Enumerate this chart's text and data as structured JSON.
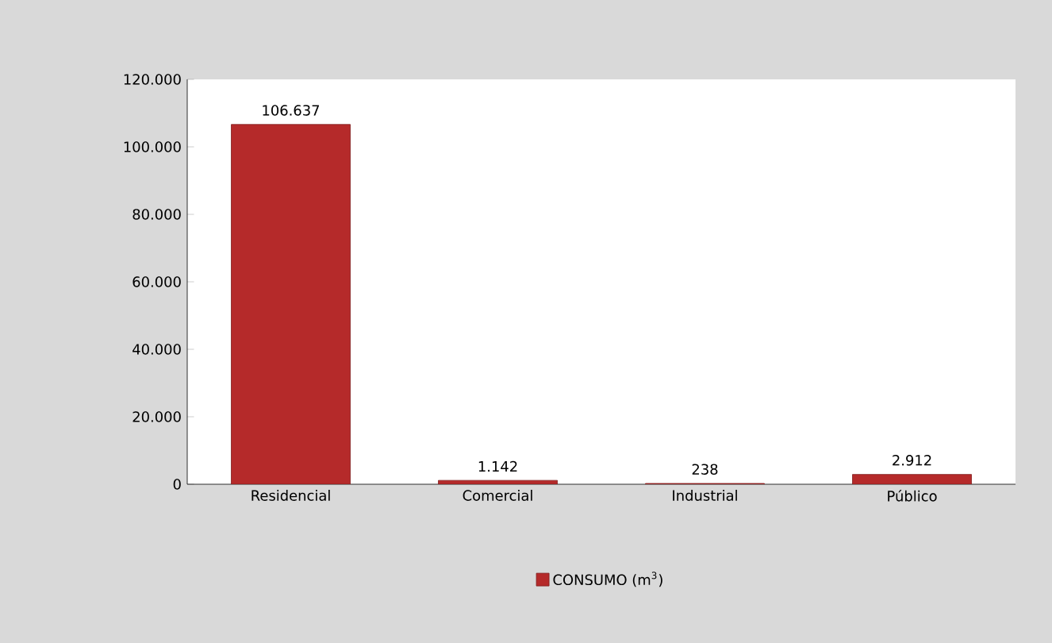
{
  "chart_data": {
    "type": "bar",
    "categories": [
      "Residencial",
      "Comercial",
      "Industrial",
      "Público"
    ],
    "series": [
      {
        "name": "CONSUMO (m$^{3}$)",
        "color": "#b52a2a",
        "values": [
          106637,
          1142,
          238,
          2912
        ],
        "value_labels": [
          "106.637",
          "1.142",
          "238",
          "2.912"
        ]
      }
    ],
    "ylim": [
      0,
      120000
    ],
    "yticks": [
      0,
      {
        "value": 20000,
        "label": "20.000"
      },
      {
        "value": 40000,
        "label": "40.000"
      },
      {
        "value": 60000,
        "label": "60.000"
      },
      {
        "value": 80000,
        "label": "80.000"
      },
      {
        "value": 100000,
        "label": "100.000"
      },
      {
        "value": 120000,
        "label": "120.000"
      }
    ],
    "grid": false,
    "legend": "bottom"
  }
}
